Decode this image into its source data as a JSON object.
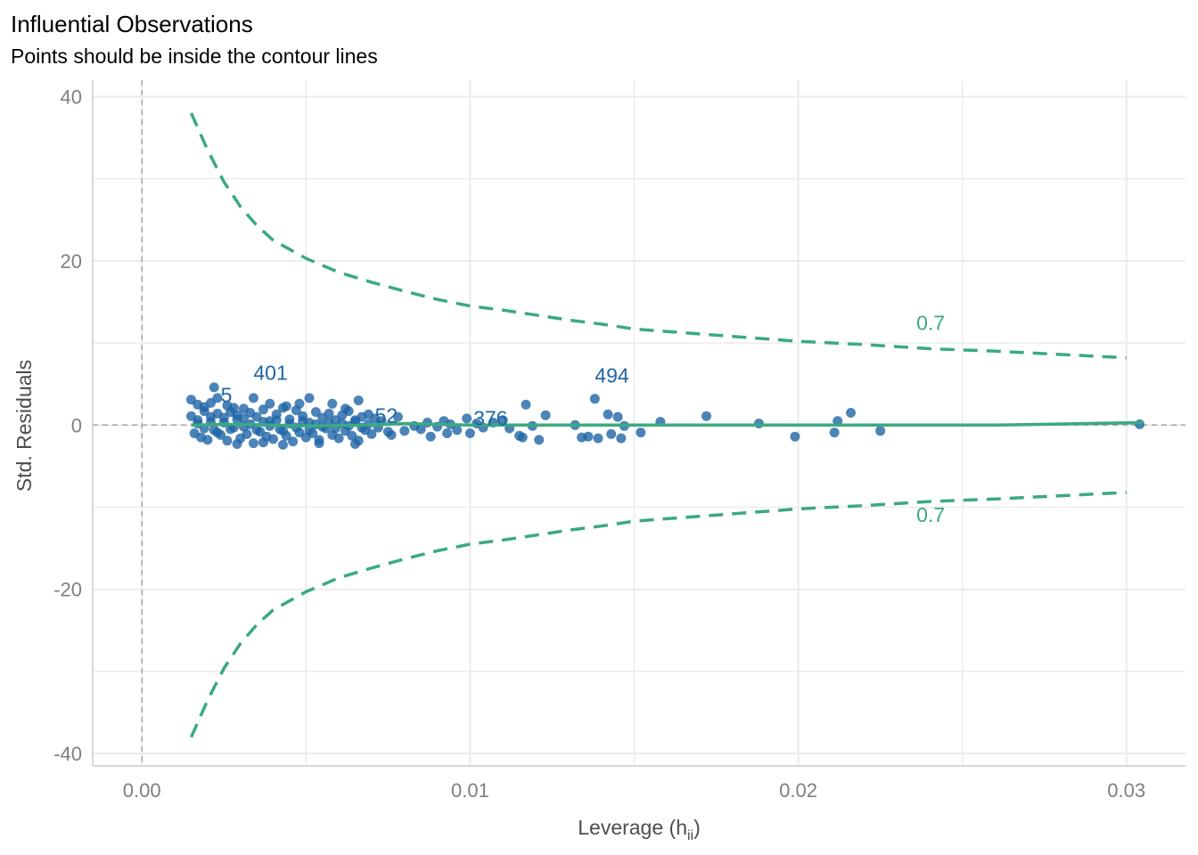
{
  "chart_data": {
    "type": "scatter",
    "title": "Influential Observations",
    "subtitle": "Points should be inside the contour lines",
    "xlabel": "Leverage (h",
    "xlabel_sub": "ii",
    "xlabel_close": ")",
    "ylabel": "Std. Residuals",
    "xlim": [
      -0.0015,
      0.0318
    ],
    "ylim": [
      -41.5,
      42
    ],
    "x_ticks": [
      0.0,
      0.01,
      0.02,
      0.03
    ],
    "x_tick_labels": [
      "0.00",
      "0.01",
      "0.02",
      "0.03"
    ],
    "y_ticks": [
      -40,
      -20,
      0,
      20,
      40
    ],
    "y_tick_labels": [
      "-40",
      "-20",
      "0",
      "20",
      "40"
    ],
    "grid": true,
    "colors": {
      "points": "#1f65a6",
      "contour": "#3aaa7f",
      "smooth": "#3aaa7f",
      "grid": "#ebebeb",
      "refline": "#a6a6a6"
    },
    "contour": {
      "label": "0.7",
      "upper": [
        [
          0.0015,
          38
        ],
        [
          0.002,
          33.5
        ],
        [
          0.0025,
          29.6
        ],
        [
          0.003,
          26.6
        ],
        [
          0.0035,
          24.3
        ],
        [
          0.004,
          22.5
        ],
        [
          0.005,
          20.3
        ],
        [
          0.006,
          18.6
        ],
        [
          0.007,
          17.4
        ],
        [
          0.008,
          16.3
        ],
        [
          0.009,
          15.3
        ],
        [
          0.01,
          14.5
        ],
        [
          0.011,
          14.0
        ],
        [
          0.012,
          13.4
        ],
        [
          0.013,
          12.8
        ],
        [
          0.014,
          12.3
        ],
        [
          0.015,
          11.7
        ],
        [
          0.016,
          11.4
        ],
        [
          0.018,
          10.8
        ],
        [
          0.02,
          10.2
        ],
        [
          0.022,
          9.8
        ],
        [
          0.024,
          9.3
        ],
        [
          0.026,
          9.0
        ],
        [
          0.028,
          8.6
        ],
        [
          0.03,
          8.2
        ]
      ],
      "lower": [
        [
          0.0015,
          -38
        ],
        [
          0.002,
          -33.5
        ],
        [
          0.0025,
          -29.6
        ],
        [
          0.003,
          -26.6
        ],
        [
          0.0035,
          -24.3
        ],
        [
          0.004,
          -22.5
        ],
        [
          0.005,
          -20.3
        ],
        [
          0.006,
          -18.6
        ],
        [
          0.007,
          -17.4
        ],
        [
          0.008,
          -16.3
        ],
        [
          0.009,
          -15.3
        ],
        [
          0.01,
          -14.5
        ],
        [
          0.011,
          -14.0
        ],
        [
          0.012,
          -13.4
        ],
        [
          0.013,
          -12.8
        ],
        [
          0.014,
          -12.3
        ],
        [
          0.015,
          -11.7
        ],
        [
          0.016,
          -11.4
        ],
        [
          0.018,
          -10.8
        ],
        [
          0.02,
          -10.2
        ],
        [
          0.022,
          -9.8
        ],
        [
          0.024,
          -9.3
        ],
        [
          0.026,
          -9.0
        ],
        [
          0.028,
          -8.6
        ],
        [
          0.03,
          -8.2
        ]
      ]
    },
    "smooth": [
      [
        0.0015,
        0.0
      ],
      [
        0.003,
        0.1
      ],
      [
        0.005,
        -0.1
      ],
      [
        0.007,
        0.0
      ],
      [
        0.008,
        0.2
      ],
      [
        0.01,
        0.0
      ],
      [
        0.015,
        0.0
      ],
      [
        0.02,
        0.0
      ],
      [
        0.026,
        0.0
      ],
      [
        0.0305,
        0.3
      ]
    ],
    "points": [
      [
        0.0015,
        3.1
      ],
      [
        0.0017,
        2.5
      ],
      [
        0.0019,
        2.2
      ],
      [
        0.0021,
        2.7
      ],
      [
        0.0023,
        3.3
      ],
      [
        0.0026,
        2.4
      ],
      [
        0.0028,
        2.1
      ],
      [
        0.0031,
        2.0
      ],
      [
        0.0022,
        4.6
      ],
      [
        0.0015,
        1.1
      ],
      [
        0.0016,
        -1.0
      ],
      [
        0.0017,
        0.6
      ],
      [
        0.0018,
        -1.5
      ],
      [
        0.0019,
        1.7
      ],
      [
        0.002,
        -1.8
      ],
      [
        0.0021,
        0.4
      ],
      [
        0.0022,
        -0.6
      ],
      [
        0.0023,
        1.4
      ],
      [
        0.0024,
        -1.2
      ],
      [
        0.0025,
        0.9
      ],
      [
        0.0026,
        -1.9
      ],
      [
        0.0027,
        1.6
      ],
      [
        0.0028,
        -0.3
      ],
      [
        0.0029,
        1.2
      ],
      [
        0.003,
        -1.6
      ],
      [
        0.0031,
        0.8
      ],
      [
        0.0032,
        -1.1
      ],
      [
        0.0033,
        1.5
      ],
      [
        0.0034,
        -2.2
      ],
      [
        0.0035,
        1.0
      ],
      [
        0.0036,
        -0.8
      ],
      [
        0.0037,
        1.9
      ],
      [
        0.0038,
        -1.4
      ],
      [
        0.0039,
        0.5
      ],
      [
        0.004,
        -1.7
      ],
      [
        0.0041,
        1.3
      ],
      [
        0.0042,
        -0.5
      ],
      [
        0.0043,
        2.1
      ],
      [
        0.0044,
        -1.3
      ],
      [
        0.0045,
        0.7
      ],
      [
        0.0046,
        -2.0
      ],
      [
        0.0047,
        1.8
      ],
      [
        0.0048,
        -0.9
      ],
      [
        0.0049,
        1.1
      ],
      [
        0.005,
        -1.5
      ],
      [
        0.0051,
        0.3
      ],
      [
        0.0052,
        -1.0
      ],
      [
        0.0053,
        1.6
      ],
      [
        0.0054,
        -1.8
      ],
      [
        0.0055,
        0.9
      ],
      [
        0.0056,
        -0.4
      ],
      [
        0.0057,
        1.4
      ],
      [
        0.0058,
        -1.2
      ],
      [
        0.0059,
        0.6
      ],
      [
        0.006,
        -1.6
      ],
      [
        0.0061,
        1.2
      ],
      [
        0.0062,
        -0.7
      ],
      [
        0.0063,
        1.7
      ],
      [
        0.0064,
        -1.3
      ],
      [
        0.0065,
        0.4
      ],
      [
        0.0066,
        -1.9
      ],
      [
        0.0067,
        1.0
      ],
      [
        0.0068,
        -0.6
      ],
      [
        0.0069,
        1.3
      ],
      [
        0.007,
        -1.1
      ],
      [
        0.0071,
        0.8
      ],
      [
        0.0072,
        -0.3
      ],
      [
        0.0073,
        0.5
      ],
      [
        0.0075,
        -0.8
      ],
      [
        0.0078,
        1.0
      ],
      [
        0.0076,
        -1.2
      ],
      [
        0.0017,
        0.2
      ],
      [
        0.0019,
        -0.4
      ],
      [
        0.0021,
        1.0
      ],
      [
        0.0023,
        -0.9
      ],
      [
        0.0025,
        0.3
      ],
      [
        0.0027,
        -0.5
      ],
      [
        0.0029,
        0.7
      ],
      [
        0.0031,
        -0.2
      ],
      [
        0.0033,
        0.1
      ],
      [
        0.0035,
        -0.6
      ],
      [
        0.0037,
        0.4
      ],
      [
        0.0039,
        -0.1
      ],
      [
        0.0041,
        0.6
      ],
      [
        0.0043,
        -0.7
      ],
      [
        0.0045,
        0.2
      ],
      [
        0.0047,
        -0.3
      ],
      [
        0.0049,
        0.5
      ],
      [
        0.0051,
        -0.6
      ],
      [
        0.0053,
        0.1
      ],
      [
        0.0055,
        -0.2
      ],
      [
        0.0057,
        0.3
      ],
      [
        0.0059,
        -0.4
      ],
      [
        0.0061,
        0.2
      ],
      [
        0.0063,
        -0.1
      ],
      [
        0.0065,
        0.6
      ],
      [
        0.0067,
        -0.3
      ],
      [
        0.0069,
        0.1
      ],
      [
        0.0034,
        3.3
      ],
      [
        0.0039,
        2.6
      ],
      [
        0.0044,
        2.3
      ],
      [
        0.0051,
        3.3
      ],
      [
        0.0058,
        2.6
      ],
      [
        0.0066,
        3.0
      ],
      [
        0.0048,
        2.6
      ],
      [
        0.0062,
        2.0
      ],
      [
        0.0029,
        -2.3
      ],
      [
        0.0043,
        -2.4
      ],
      [
        0.0054,
        -2.2
      ],
      [
        0.0065,
        -2.3
      ],
      [
        0.0037,
        -2.1
      ],
      [
        0.008,
        -0.7
      ],
      [
        0.0083,
        -0.1
      ],
      [
        0.0085,
        -0.5
      ],
      [
        0.0088,
        -1.4
      ],
      [
        0.009,
        -0.2
      ],
      [
        0.0093,
        -1.0
      ],
      [
        0.0094,
        0.1
      ],
      [
        0.0096,
        -0.6
      ],
      [
        0.0099,
        0.8
      ],
      [
        0.01,
        -1.0
      ],
      [
        0.0102,
        0.2
      ],
      [
        0.0104,
        -0.3
      ],
      [
        0.0107,
        0.3
      ],
      [
        0.011,
        0.6
      ],
      [
        0.0112,
        -0.4
      ],
      [
        0.0115,
        -1.3
      ],
      [
        0.0116,
        -1.5
      ],
      [
        0.0117,
        2.5
      ],
      [
        0.0119,
        -0.1
      ],
      [
        0.0121,
        -1.8
      ],
      [
        0.0123,
        1.2
      ],
      [
        0.0087,
        0.3
      ],
      [
        0.0092,
        0.5
      ],
      [
        0.0132,
        0.0
      ],
      [
        0.0134,
        -1.5
      ],
      [
        0.0136,
        -1.4
      ],
      [
        0.0138,
        3.2
      ],
      [
        0.0139,
        -1.6
      ],
      [
        0.0142,
        1.3
      ],
      [
        0.0143,
        -1.1
      ],
      [
        0.0145,
        1.0
      ],
      [
        0.0146,
        -1.6
      ],
      [
        0.0147,
        -0.1
      ],
      [
        0.0152,
        -0.9
      ],
      [
        0.0158,
        0.4
      ],
      [
        0.0172,
        1.1
      ],
      [
        0.0188,
        0.2
      ],
      [
        0.0199,
        -1.4
      ],
      [
        0.0211,
        -0.9
      ],
      [
        0.0212,
        0.5
      ],
      [
        0.0216,
        1.5
      ],
      [
        0.0225,
        -0.7
      ],
      [
        0.0304,
        0.1
      ]
    ],
    "point_labels": [
      {
        "text": "401",
        "x": 0.0034,
        "y": 5.5
      },
      {
        "text": "5",
        "x": 0.0024,
        "y": 2.8
      },
      {
        "text": "494",
        "x": 0.0138,
        "y": 5.2
      },
      {
        "text": "52",
        "x": 0.0071,
        "y": 0.3
      },
      {
        "text": "376",
        "x": 0.0101,
        "y": 0.0
      }
    ],
    "contour_labels": [
      {
        "text": "0.7",
        "x": 0.0236,
        "y": 11.6
      },
      {
        "text": "0.7",
        "x": 0.0236,
        "y": -11.8
      }
    ]
  }
}
